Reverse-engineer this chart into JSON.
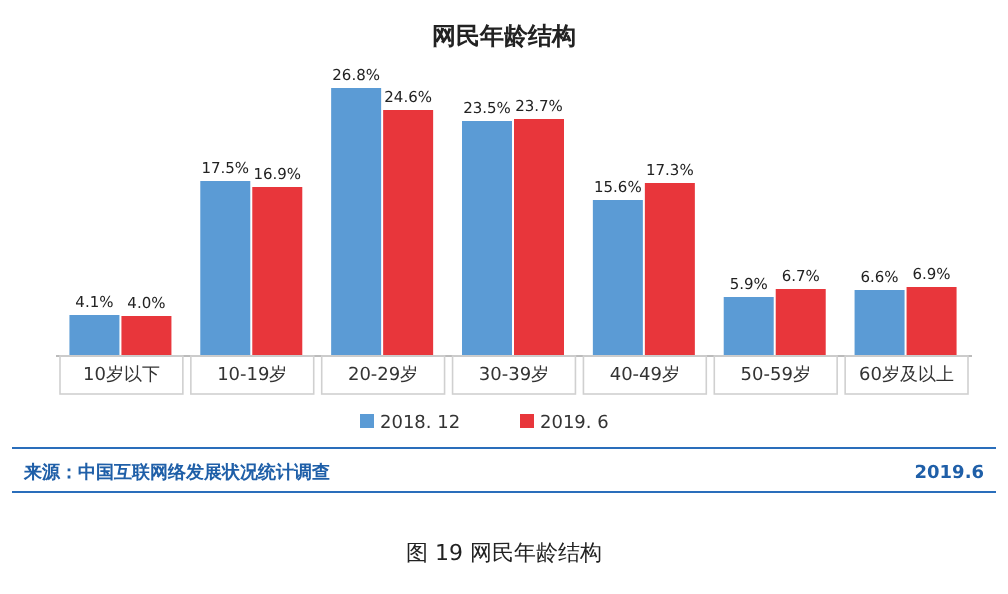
{
  "chart_data": {
    "type": "bar",
    "title": "网民年龄结构",
    "categories": [
      "10岁以下",
      "10-19岁",
      "20-29岁",
      "30-39岁",
      "40-49岁",
      "50-59岁",
      "60岁及以上"
    ],
    "series": [
      {
        "name": "2018. 12",
        "color": "#5b9bd5",
        "values": [
          4.1,
          17.5,
          26.8,
          23.5,
          15.6,
          5.9,
          6.6
        ],
        "value_labels": [
          "4.1%",
          "17.5%",
          "26.8%",
          "23.5%",
          "15.6%",
          "5.9%",
          "6.6%"
        ]
      },
      {
        "name": "2019. 6",
        "color": "#e8363b",
        "values": [
          4.0,
          16.9,
          24.6,
          23.7,
          17.3,
          6.7,
          6.9
        ],
        "value_labels": [
          "4.0%",
          "16.9%",
          "24.6%",
          "23.7%",
          "17.3%",
          "6.7%",
          "6.9%"
        ]
      }
    ],
    "legend": "bottom",
    "annotations": [
      "来源：中国互联网络发展状况统计调查",
      "2019.6",
      "图 19 网民年龄结构"
    ]
  }
}
